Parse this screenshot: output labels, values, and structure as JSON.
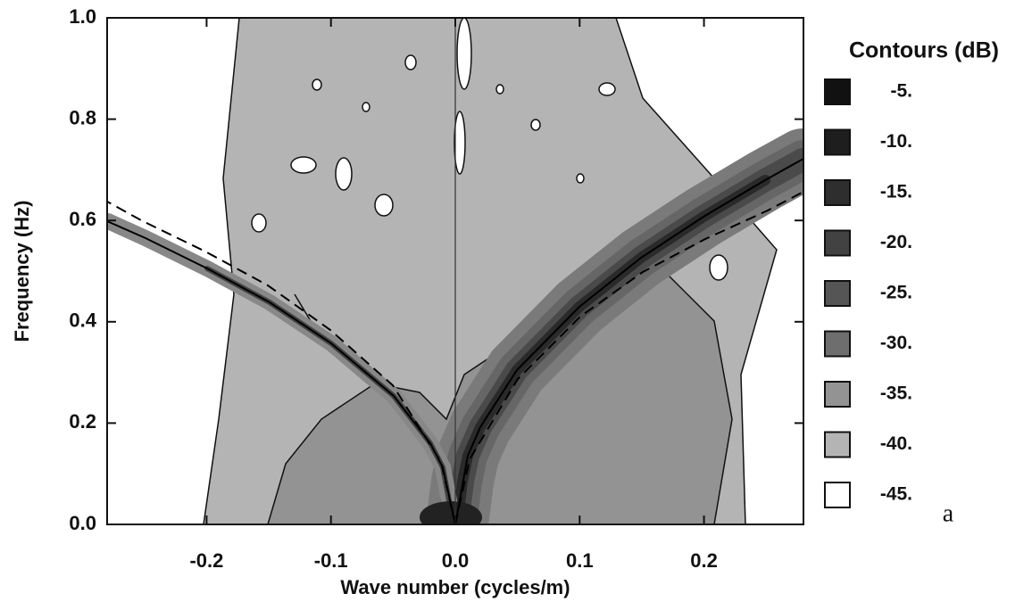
{
  "chart_data": {
    "type": "contour",
    "x_label": "Wave number (cycles/m)",
    "y_label": "Frequency (Hz)",
    "xlim": [
      -0.28,
      0.28
    ],
    "ylim": [
      0,
      1
    ],
    "xticks": [
      -0.2,
      -0.1,
      {
        "value": 0,
        "label": "0.0"
      },
      0.1,
      0.2
    ],
    "yticks": [
      {
        "value": 0,
        "label": "0.0"
      },
      0.2,
      0.4,
      0.6,
      0.8,
      {
        "value": 1,
        "label": "1.0"
      }
    ],
    "legend": {
      "title": "Contours (dB)",
      "position": "right",
      "levels": [
        {
          "value": -5,
          "label": "-5.",
          "color": "#111111"
        },
        {
          "value": -10,
          "label": "-10.",
          "color": "#1e1e1e"
        },
        {
          "value": -15,
          "label": "-15.",
          "color": "#2e2e2e"
        },
        {
          "value": -20,
          "label": "-20.",
          "color": "#424242"
        },
        {
          "value": -25,
          "label": "-25.",
          "color": "#555555"
        },
        {
          "value": -30,
          "label": "-30.",
          "color": "#6e6e6e"
        },
        {
          "value": -35,
          "label": "-35.",
          "color": "#939393"
        },
        {
          "value": -40,
          "label": "-40.",
          "color": "#b4b4b4"
        },
        {
          "value": -45,
          "label": "-45.",
          "color": "#ffffff"
        }
      ]
    },
    "annotation": "a"
  }
}
